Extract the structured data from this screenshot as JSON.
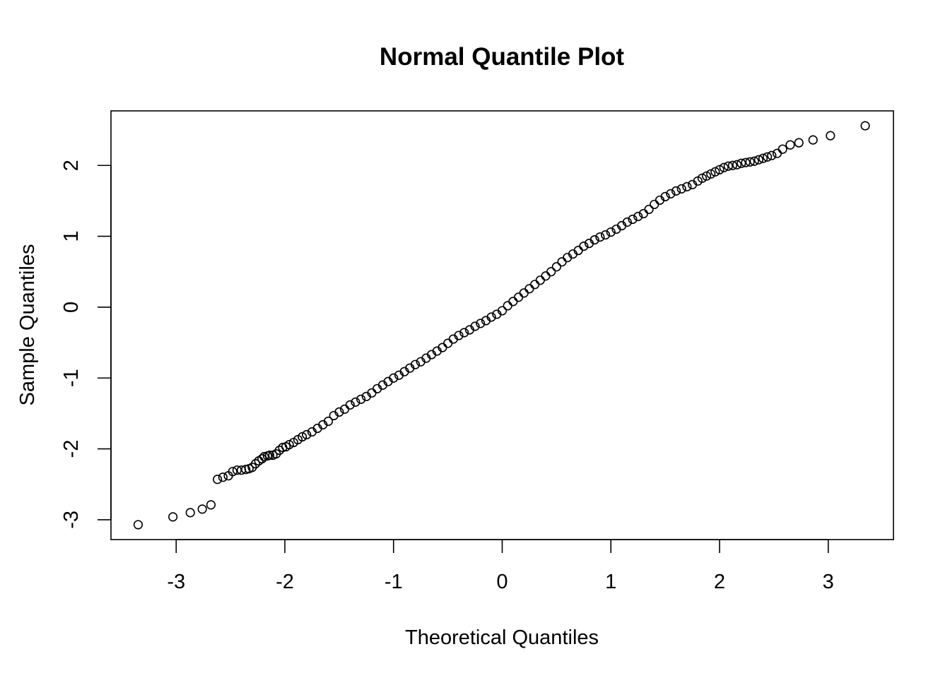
{
  "chart_data": {
    "type": "scatter",
    "title": "Normal Quantile Plot",
    "xlabel": "Theoretical Quantiles",
    "ylabel": "Sample Quantiles",
    "xlim": [
      -3.6,
      3.6
    ],
    "ylim": [
      -3.28,
      2.77
    ],
    "xticks": [
      -3,
      -2,
      -1,
      0,
      1,
      2,
      3
    ],
    "yticks": [
      -3,
      -2,
      -1,
      0,
      1,
      2
    ],
    "grid": false,
    "marker": "open-circle",
    "marker_color": "#000000",
    "points": [
      [
        -3.35,
        -3.07
      ],
      [
        -3.03,
        -2.96
      ],
      [
        -2.87,
        -2.9
      ],
      [
        -2.76,
        -2.85
      ],
      [
        -2.68,
        -2.79
      ],
      [
        -2.62,
        -2.43
      ],
      [
        -2.57,
        -2.4
      ],
      [
        -2.52,
        -2.38
      ],
      [
        -2.48,
        -2.32
      ],
      [
        -2.44,
        -2.3
      ],
      [
        -2.4,
        -2.3
      ],
      [
        -2.36,
        -2.29
      ],
      [
        -2.33,
        -2.28
      ],
      [
        -2.3,
        -2.26
      ],
      [
        -2.27,
        -2.21
      ],
      [
        -2.24,
        -2.17
      ],
      [
        -2.21,
        -2.14
      ],
      [
        -2.19,
        -2.11
      ],
      [
        -2.16,
        -2.1
      ],
      [
        -2.14,
        -2.09
      ],
      [
        -2.11,
        -2.09
      ],
      [
        -2.08,
        -2.07
      ],
      [
        -2.05,
        -2.02
      ],
      [
        -2.02,
        -1.98
      ],
      [
        -1.99,
        -1.97
      ],
      [
        -1.96,
        -1.94
      ],
      [
        -1.92,
        -1.91
      ],
      [
        -1.88,
        -1.87
      ],
      [
        -1.84,
        -1.83
      ],
      [
        -1.8,
        -1.8
      ],
      [
        -1.75,
        -1.76
      ],
      [
        -1.7,
        -1.71
      ],
      [
        -1.65,
        -1.66
      ],
      [
        -1.6,
        -1.61
      ],
      [
        -1.55,
        -1.53
      ],
      [
        -1.5,
        -1.48
      ],
      [
        -1.45,
        -1.44
      ],
      [
        -1.4,
        -1.38
      ],
      [
        -1.35,
        -1.34
      ],
      [
        -1.3,
        -1.3
      ],
      [
        -1.25,
        -1.26
      ],
      [
        -1.2,
        -1.21
      ],
      [
        -1.15,
        -1.15
      ],
      [
        -1.1,
        -1.1
      ],
      [
        -1.05,
        -1.05
      ],
      [
        -1.0,
        -1.0
      ],
      [
        -0.95,
        -0.96
      ],
      [
        -0.9,
        -0.91
      ],
      [
        -0.85,
        -0.86
      ],
      [
        -0.8,
        -0.81
      ],
      [
        -0.75,
        -0.77
      ],
      [
        -0.7,
        -0.72
      ],
      [
        -0.65,
        -0.67
      ],
      [
        -0.6,
        -0.62
      ],
      [
        -0.55,
        -0.57
      ],
      [
        -0.5,
        -0.51
      ],
      [
        -0.45,
        -0.45
      ],
      [
        -0.4,
        -0.4
      ],
      [
        -0.35,
        -0.36
      ],
      [
        -0.3,
        -0.32
      ],
      [
        -0.25,
        -0.27
      ],
      [
        -0.2,
        -0.23
      ],
      [
        -0.15,
        -0.19
      ],
      [
        -0.1,
        -0.14
      ],
      [
        -0.05,
        -0.1
      ],
      [
        0.0,
        -0.05
      ],
      [
        0.05,
        0.02
      ],
      [
        0.1,
        0.08
      ],
      [
        0.15,
        0.14
      ],
      [
        0.2,
        0.2
      ],
      [
        0.25,
        0.26
      ],
      [
        0.3,
        0.32
      ],
      [
        0.35,
        0.38
      ],
      [
        0.4,
        0.44
      ],
      [
        0.45,
        0.5
      ],
      [
        0.5,
        0.57
      ],
      [
        0.55,
        0.64
      ],
      [
        0.6,
        0.7
      ],
      [
        0.65,
        0.75
      ],
      [
        0.7,
        0.8
      ],
      [
        0.75,
        0.86
      ],
      [
        0.8,
        0.9
      ],
      [
        0.85,
        0.95
      ],
      [
        0.9,
        0.99
      ],
      [
        0.95,
        1.02
      ],
      [
        1.0,
        1.06
      ],
      [
        1.05,
        1.1
      ],
      [
        1.1,
        1.15
      ],
      [
        1.15,
        1.2
      ],
      [
        1.2,
        1.24
      ],
      [
        1.25,
        1.28
      ],
      [
        1.3,
        1.32
      ],
      [
        1.35,
        1.38
      ],
      [
        1.4,
        1.45
      ],
      [
        1.45,
        1.51
      ],
      [
        1.5,
        1.56
      ],
      [
        1.55,
        1.6
      ],
      [
        1.6,
        1.64
      ],
      [
        1.65,
        1.67
      ],
      [
        1.7,
        1.7
      ],
      [
        1.75,
        1.73
      ],
      [
        1.8,
        1.78
      ],
      [
        1.84,
        1.82
      ],
      [
        1.88,
        1.85
      ],
      [
        1.92,
        1.88
      ],
      [
        1.96,
        1.91
      ],
      [
        2.0,
        1.94
      ],
      [
        2.04,
        1.97
      ],
      [
        2.08,
        1.99
      ],
      [
        2.12,
        2.0
      ],
      [
        2.16,
        2.01
      ],
      [
        2.2,
        2.03
      ],
      [
        2.24,
        2.04
      ],
      [
        2.28,
        2.05
      ],
      [
        2.32,
        2.06
      ],
      [
        2.36,
        2.08
      ],
      [
        2.4,
        2.1
      ],
      [
        2.44,
        2.12
      ],
      [
        2.48,
        2.14
      ],
      [
        2.53,
        2.17
      ],
      [
        2.58,
        2.23
      ],
      [
        2.65,
        2.29
      ],
      [
        2.73,
        2.32
      ],
      [
        2.86,
        2.36
      ],
      [
        3.02,
        2.42
      ],
      [
        3.34,
        2.56
      ]
    ]
  }
}
